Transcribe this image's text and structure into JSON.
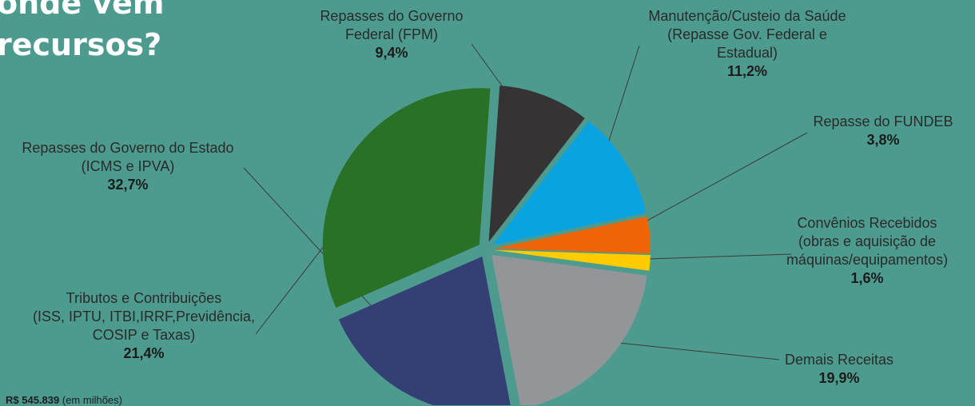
{
  "title": {
    "line1": "onde vem",
    "line2": "recursos?"
  },
  "total_note": {
    "value": "R$ 545.839",
    "unit": "(em milhões)"
  },
  "chart_data": {
    "type": "pie",
    "title": "",
    "slices": [
      {
        "lines": [
          "Repasses do Governo",
          "Federal (FPM)"
        ],
        "value": 9.4,
        "label": "9,4%",
        "color": "#363334"
      },
      {
        "lines": [
          "Manutenção/Custeio da Saúde",
          "(Repasse Gov. Federal e",
          "Estadual)"
        ],
        "value": 11.2,
        "label": "11,2%",
        "color": "#0aa3e2"
      },
      {
        "lines": [
          "Repasse do FUNDEB"
        ],
        "value": 3.8,
        "label": "3,8%",
        "color": "#f06408"
      },
      {
        "lines": [
          "Convênios Recebidos",
          "(obras e aquisição de",
          "máquinas/equipamentos)"
        ],
        "value": 1.6,
        "label": "1,6%",
        "color": "#ffcc00"
      },
      {
        "lines": [
          "Demais Receitas"
        ],
        "value": 19.9,
        "label": "19,9%",
        "color": "#939698"
      },
      {
        "lines": [
          "Tributos e Contribuições",
          "(ISS, IPTU, ITBI,IRRF,Previdência,",
          "COSIP e Taxas)"
        ],
        "value": 21.4,
        "label": "21,4%",
        "color": "#343f73"
      },
      {
        "lines": [
          "Repasses do Governo do Estado",
          "(ICMS e IPVA)"
        ],
        "value": 32.7,
        "label": "32,7%",
        "color": "#2a7128"
      }
    ]
  }
}
